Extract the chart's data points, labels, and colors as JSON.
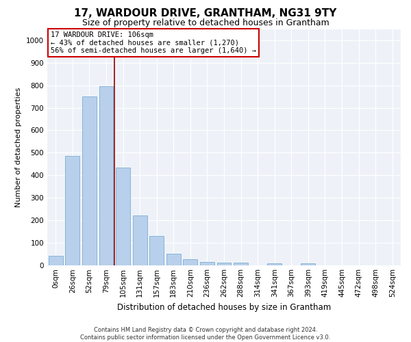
{
  "title": "17, WARDOUR DRIVE, GRANTHAM, NG31 9TY",
  "subtitle": "Size of property relative to detached houses in Grantham",
  "xlabel": "Distribution of detached houses by size in Grantham",
  "ylabel": "Number of detached properties",
  "bar_color": "#b8d0eb",
  "bar_edge_color": "#7aadd4",
  "background_color": "#eef2f8",
  "grid_color": "#ffffff",
  "categories": [
    "0sqm",
    "26sqm",
    "52sqm",
    "79sqm",
    "105sqm",
    "131sqm",
    "157sqm",
    "183sqm",
    "210sqm",
    "236sqm",
    "262sqm",
    "288sqm",
    "314sqm",
    "341sqm",
    "367sqm",
    "393sqm",
    "419sqm",
    "445sqm",
    "472sqm",
    "498sqm",
    "524sqm"
  ],
  "values": [
    42,
    485,
    750,
    795,
    435,
    220,
    128,
    50,
    27,
    14,
    10,
    10,
    0,
    8,
    0,
    8,
    0,
    0,
    0,
    0,
    0
  ],
  "ylim": [
    0,
    1050
  ],
  "yticks": [
    0,
    100,
    200,
    300,
    400,
    500,
    600,
    700,
    800,
    900,
    1000
  ],
  "vertical_line_x": 3.5,
  "vertical_line_color": "#990000",
  "annotation_text": "17 WARDOUR DRIVE: 106sqm\n← 43% of detached houses are smaller (1,270)\n56% of semi-detached houses are larger (1,640) →",
  "annotation_box_color": "#ffffff",
  "annotation_border_color": "#cc0000",
  "footer_line1": "Contains HM Land Registry data © Crown copyright and database right 2024.",
  "footer_line2": "Contains public sector information licensed under the Open Government Licence v3.0.",
  "title_fontsize": 11,
  "subtitle_fontsize": 9,
  "xlabel_fontsize": 8.5,
  "ylabel_fontsize": 8,
  "tick_fontsize": 7.5,
  "annotation_fontsize": 7.5,
  "footer_fontsize": 6
}
